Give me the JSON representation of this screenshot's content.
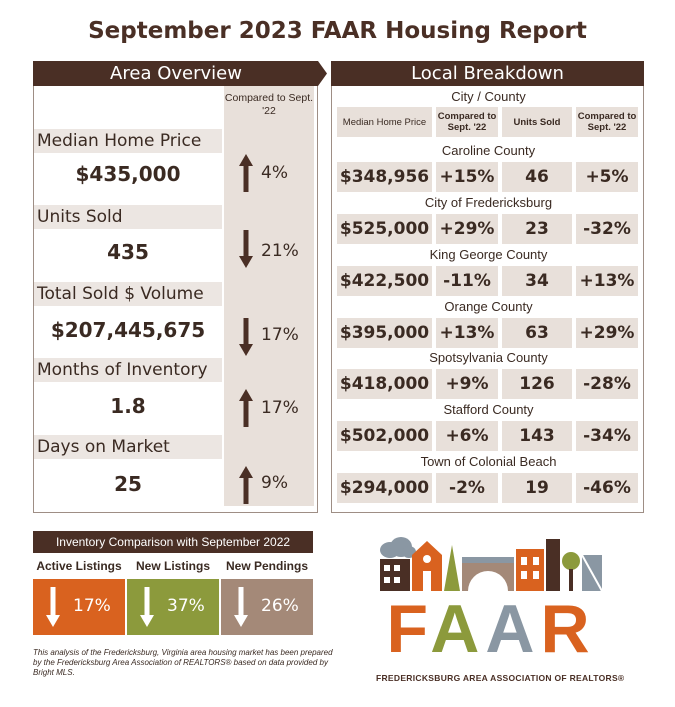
{
  "title": "September 2023 FAAR Housing Report",
  "area_overview": {
    "banner": "Area Overview",
    "compared_header": "Compared to Sept. '22",
    "metrics": [
      {
        "label": "Median Home Price",
        "value": "$435,000",
        "direction": "up",
        "change": "4%"
      },
      {
        "label": "Units Sold",
        "value": "435",
        "direction": "down",
        "change": "21%"
      },
      {
        "label": "Total Sold $ Volume",
        "value": "$207,445,675",
        "direction": "down",
        "change": "17%"
      },
      {
        "label": "Months of Inventory",
        "value": "1.8",
        "direction": "up",
        "change": "17%"
      },
      {
        "label": "Days on Market",
        "value": "25",
        "direction": "up",
        "change": "9%"
      }
    ]
  },
  "local_breakdown": {
    "banner": "Local Breakdown",
    "city_county_header": "City / County",
    "headers": {
      "median": "Median Home Price",
      "compared1": "Compared to Sept. '22",
      "units": "Units Sold",
      "compared2": "Compared to Sept. '22"
    },
    "rows": [
      {
        "name": "Caroline County",
        "median": "$348,956",
        "median_change": "+15%",
        "units": "46",
        "units_change": "+5%"
      },
      {
        "name": "City of Fredericksburg",
        "median": "$525,000",
        "median_change": "+29%",
        "units": "23",
        "units_change": "-32%"
      },
      {
        "name": "King George County",
        "median": "$422,500",
        "median_change": "-11%",
        "units": "34",
        "units_change": "+13%"
      },
      {
        "name": "Orange County",
        "median": "$395,000",
        "median_change": "+13%",
        "units": "63",
        "units_change": "+29%"
      },
      {
        "name": "Spotsylvania County",
        "median": "$418,000",
        "median_change": "+9%",
        "units": "126",
        "units_change": "-28%"
      },
      {
        "name": "Stafford County",
        "median": "$502,000",
        "median_change": "+6%",
        "units": "143",
        "units_change": "-34%"
      },
      {
        "name": "Town of Colonial Beach",
        "median": "$294,000",
        "median_change": "-2%",
        "units": "19",
        "units_change": "-46%"
      }
    ]
  },
  "inventory": {
    "header": "Inventory Comparison with September 2022",
    "items": [
      {
        "label": "Active Listings",
        "change": "17%",
        "direction": "down",
        "color": "#d9621f"
      },
      {
        "label": "New Listings",
        "change": "37%",
        "direction": "down",
        "color": "#8c9a3c"
      },
      {
        "label": "New Pendings",
        "change": "26%",
        "direction": "down",
        "color": "#a48978"
      }
    ]
  },
  "note": "This analysis of the Fredericksburg, Virginia area housing market has been prepared by the Fredericksburg Area Association of REALTORS® based on data provided by Bright MLS.",
  "logo": {
    "text": "FAAR",
    "subtitle": "FREDERICKSBURG AREA ASSOCIATION OF REALTORS®"
  },
  "colors": {
    "brown": "#4a2f25",
    "panel": "#e8e0da",
    "orange": "#d9621f",
    "olive": "#8c9a3c",
    "taupe": "#a48978"
  }
}
